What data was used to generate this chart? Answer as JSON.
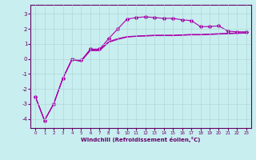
{
  "xlabel": "Windchill (Refroidissement éolien,°C)",
  "background_color": "#c8eef0",
  "grid_color": "#b0d8d8",
  "line_color": "#aa00aa",
  "xlim": [
    -0.5,
    23.5
  ],
  "ylim": [
    -4.6,
    3.6
  ],
  "yticks": [
    -4,
    -3,
    -2,
    -1,
    0,
    1,
    2,
    3
  ],
  "xticks": [
    0,
    1,
    2,
    3,
    4,
    5,
    6,
    7,
    8,
    9,
    10,
    11,
    12,
    13,
    14,
    15,
    16,
    17,
    18,
    19,
    20,
    21,
    22,
    23
  ],
  "line1_x": [
    0,
    1,
    2,
    3,
    4,
    5,
    6,
    7,
    8,
    9,
    10,
    11,
    12,
    13,
    14,
    15,
    16,
    17,
    18,
    19,
    20,
    21,
    22,
    23
  ],
  "line1_y": [
    -2.5,
    -4.1,
    -3.0,
    -1.3,
    -0.05,
    -0.15,
    0.55,
    0.55,
    1.1,
    1.3,
    1.45,
    1.5,
    1.52,
    1.55,
    1.55,
    1.55,
    1.57,
    1.6,
    1.6,
    1.62,
    1.65,
    1.67,
    1.7,
    1.72
  ],
  "line2_x": [
    0,
    1,
    2,
    3,
    4,
    5,
    6,
    7,
    8,
    9,
    10,
    11,
    12,
    13,
    14,
    15,
    16,
    17,
    18,
    19,
    20,
    21,
    22,
    23
  ],
  "line2_y": [
    -2.5,
    -4.1,
    -3.0,
    -1.3,
    -0.05,
    -0.15,
    0.6,
    0.6,
    1.15,
    1.35,
    1.48,
    1.52,
    1.55,
    1.58,
    1.58,
    1.58,
    1.6,
    1.63,
    1.63,
    1.65,
    1.68,
    1.7,
    1.73,
    1.75
  ],
  "line3_x": [
    0,
    1,
    2,
    3,
    4,
    5,
    6,
    7,
    8,
    9,
    10,
    11,
    12,
    13,
    14,
    15,
    16,
    17,
    18,
    19,
    20,
    21,
    22,
    23
  ],
  "line3_y": [
    -2.5,
    -4.1,
    -3.0,
    -1.3,
    0.0,
    -0.1,
    0.65,
    0.65,
    1.35,
    2.0,
    2.65,
    2.75,
    2.8,
    2.75,
    2.7,
    2.7,
    2.6,
    2.55,
    2.15,
    2.15,
    2.2,
    1.85,
    1.8,
    1.8
  ]
}
